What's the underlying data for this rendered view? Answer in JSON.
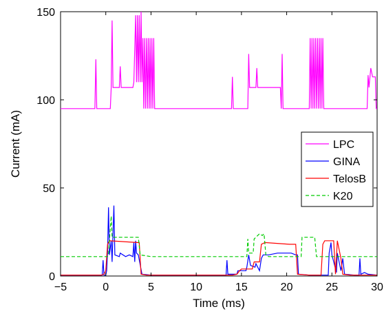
{
  "chart_data": {
    "type": "line",
    "xlabel": "Time (ms)",
    "ylabel": "Current (mA)",
    "xlim": [
      -5,
      30
    ],
    "ylim": [
      0,
      150
    ],
    "xticks": [
      "−5",
      "0",
      "5",
      "10",
      "15",
      "20",
      "25",
      "30"
    ],
    "xtick_values": [
      -5,
      0,
      5,
      10,
      15,
      20,
      25,
      30
    ],
    "yticks": [
      "0",
      "50",
      "100",
      "150"
    ],
    "ytick_values": [
      0,
      50,
      100,
      150
    ],
    "legend_position": "right",
    "grid": false,
    "series": [
      {
        "name": "LPC",
        "color": "#ff00ff",
        "style": "solid",
        "points": [
          [
            -5,
            95
          ],
          [
            -1.2,
            95
          ],
          [
            -1.1,
            123
          ],
          [
            -1.0,
            95
          ],
          [
            0.5,
            95
          ],
          [
            0.6,
            107
          ],
          [
            0.7,
            145
          ],
          [
            0.8,
            107
          ],
          [
            1.5,
            107
          ],
          [
            1.6,
            119
          ],
          [
            1.7,
            107
          ],
          [
            3.0,
            107
          ],
          [
            3.1,
            110
          ],
          [
            3.3,
            148
          ],
          [
            3.4,
            110
          ],
          [
            3.5,
            148
          ],
          [
            3.6,
            110
          ],
          [
            3.7,
            148
          ],
          [
            3.8,
            110
          ],
          [
            3.9,
            150
          ],
          [
            4.0,
            110
          ],
          [
            4.1,
            135
          ],
          [
            4.2,
            95
          ],
          [
            4.3,
            135
          ],
          [
            4.4,
            95
          ],
          [
            4.5,
            135
          ],
          [
            4.6,
            95
          ],
          [
            4.7,
            135
          ],
          [
            4.8,
            95
          ],
          [
            4.9,
            135
          ],
          [
            5.0,
            95
          ],
          [
            5.1,
            135
          ],
          [
            5.2,
            95
          ],
          [
            5.3,
            135
          ],
          [
            5.4,
            95
          ],
          [
            5.5,
            95
          ],
          [
            13.9,
            95
          ],
          [
            14.0,
            113
          ],
          [
            14.1,
            95
          ],
          [
            15.7,
            95
          ],
          [
            15.8,
            126
          ],
          [
            15.9,
            107
          ],
          [
            16.6,
            107
          ],
          [
            16.7,
            118
          ],
          [
            16.8,
            107
          ],
          [
            19.3,
            107
          ],
          [
            19.4,
            95
          ],
          [
            19.5,
            126
          ],
          [
            19.6,
            95
          ],
          [
            22.5,
            95
          ],
          [
            22.6,
            135
          ],
          [
            22.7,
            95
          ],
          [
            22.8,
            135
          ],
          [
            22.9,
            95
          ],
          [
            23.0,
            135
          ],
          [
            23.1,
            95
          ],
          [
            23.2,
            135
          ],
          [
            23.3,
            95
          ],
          [
            23.4,
            135
          ],
          [
            23.5,
            95
          ],
          [
            23.6,
            135
          ],
          [
            23.7,
            95
          ],
          [
            23.8,
            135
          ],
          [
            23.9,
            95
          ],
          [
            24.0,
            135
          ],
          [
            24.1,
            95
          ],
          [
            28.9,
            95
          ],
          [
            29.0,
            114
          ],
          [
            29.1,
            107
          ],
          [
            29.3,
            118
          ],
          [
            29.5,
            113
          ],
          [
            29.8,
            113
          ],
          [
            29.9,
            95
          ],
          [
            30,
            95
          ]
        ]
      },
      {
        "name": "GINA",
        "color": "#0000ff",
        "style": "solid",
        "points": [
          [
            -5,
            0.5
          ],
          [
            -0.4,
            0.5
          ],
          [
            -0.3,
            9
          ],
          [
            -0.2,
            0.5
          ],
          [
            0,
            0.5
          ],
          [
            0.1,
            3
          ],
          [
            0.2,
            14
          ],
          [
            0.3,
            39
          ],
          [
            0.4,
            12
          ],
          [
            0.6,
            20
          ],
          [
            0.7,
            8
          ],
          [
            0.9,
            40
          ],
          [
            1.0,
            12
          ],
          [
            1.5,
            11
          ],
          [
            1.6,
            13
          ],
          [
            2.2,
            11
          ],
          [
            2.6,
            12
          ],
          [
            3.0,
            11
          ],
          [
            3.1,
            19
          ],
          [
            3.2,
            8
          ],
          [
            3.3,
            20
          ],
          [
            3.4,
            13
          ],
          [
            3.6,
            12
          ],
          [
            4.0,
            1
          ],
          [
            5,
            0.5
          ],
          [
            13.3,
            0.5
          ],
          [
            13.4,
            9
          ],
          [
            13.5,
            1
          ],
          [
            14.5,
            1
          ],
          [
            14.6,
            3
          ],
          [
            15.5,
            3
          ],
          [
            15.6,
            5
          ],
          [
            15.8,
            12
          ],
          [
            16.0,
            6
          ],
          [
            16.5,
            5
          ],
          [
            16.6,
            7
          ],
          [
            17.0,
            3
          ],
          [
            17.2,
            10
          ],
          [
            17.4,
            12
          ],
          [
            18.0,
            12
          ],
          [
            19.0,
            13
          ],
          [
            20.5,
            13
          ],
          [
            21.0,
            12
          ],
          [
            21.2,
            12
          ],
          [
            21.3,
            1
          ],
          [
            22.5,
            0.5
          ],
          [
            24.6,
            0.5
          ],
          [
            24.7,
            13
          ],
          [
            24.8,
            16
          ],
          [
            24.9,
            19
          ],
          [
            25.0,
            12
          ],
          [
            25.5,
            2
          ],
          [
            25.6,
            13
          ],
          [
            26.0,
            3
          ],
          [
            26.2,
            10
          ],
          [
            26.4,
            1
          ],
          [
            27.5,
            0.5
          ],
          [
            28.0,
            0.5
          ],
          [
            28.1,
            10
          ],
          [
            28.2,
            1
          ],
          [
            28.6,
            2
          ],
          [
            29.0,
            1
          ],
          [
            30,
            0.5
          ]
        ]
      },
      {
        "name": "TelosB",
        "color": "#ff0000",
        "style": "solid",
        "points": [
          [
            -5,
            0.5
          ],
          [
            -0.5,
            0.5
          ],
          [
            -0.2,
            1
          ],
          [
            0.0,
            3
          ],
          [
            0.2,
            18
          ],
          [
            0.4,
            20
          ],
          [
            3.5,
            19
          ],
          [
            3.7,
            19
          ],
          [
            3.9,
            1
          ],
          [
            4.5,
            0.5
          ],
          [
            14.0,
            0.5
          ],
          [
            14.5,
            1
          ],
          [
            14.8,
            3
          ],
          [
            15.0,
            4
          ],
          [
            16.2,
            4
          ],
          [
            16.4,
            8
          ],
          [
            17.0,
            8
          ],
          [
            17.2,
            18
          ],
          [
            17.6,
            19
          ],
          [
            20.3,
            18
          ],
          [
            21.0,
            18
          ],
          [
            21.2,
            1
          ],
          [
            22.5,
            0.5
          ],
          [
            23.8,
            0.5
          ],
          [
            24.0,
            18
          ],
          [
            24.2,
            20
          ],
          [
            24.8,
            20
          ],
          [
            25.2,
            20
          ],
          [
            25.4,
            1
          ],
          [
            25.6,
            20
          ],
          [
            26.0,
            10
          ],
          [
            26.2,
            1
          ],
          [
            27.0,
            0.5
          ],
          [
            30,
            0.5
          ]
        ]
      },
      {
        "name": "K20",
        "color": "#00cc00",
        "style": "dashed",
        "points": [
          [
            -5,
            11
          ],
          [
            0.2,
            11
          ],
          [
            0.3,
            13
          ],
          [
            0.6,
            34
          ],
          [
            0.7,
            22
          ],
          [
            1.0,
            22
          ],
          [
            3.6,
            22
          ],
          [
            3.8,
            12
          ],
          [
            5.0,
            11
          ],
          [
            15.6,
            11
          ],
          [
            15.7,
            21
          ],
          [
            15.8,
            13
          ],
          [
            16.3,
            13
          ],
          [
            16.4,
            21
          ],
          [
            16.6,
            22
          ],
          [
            17.0,
            24
          ],
          [
            17.3,
            23
          ],
          [
            17.5,
            24
          ],
          [
            17.7,
            12
          ],
          [
            18.0,
            11
          ],
          [
            21.6,
            11
          ],
          [
            21.7,
            22
          ],
          [
            23.1,
            22
          ],
          [
            23.3,
            11
          ],
          [
            30,
            11
          ]
        ]
      }
    ]
  }
}
